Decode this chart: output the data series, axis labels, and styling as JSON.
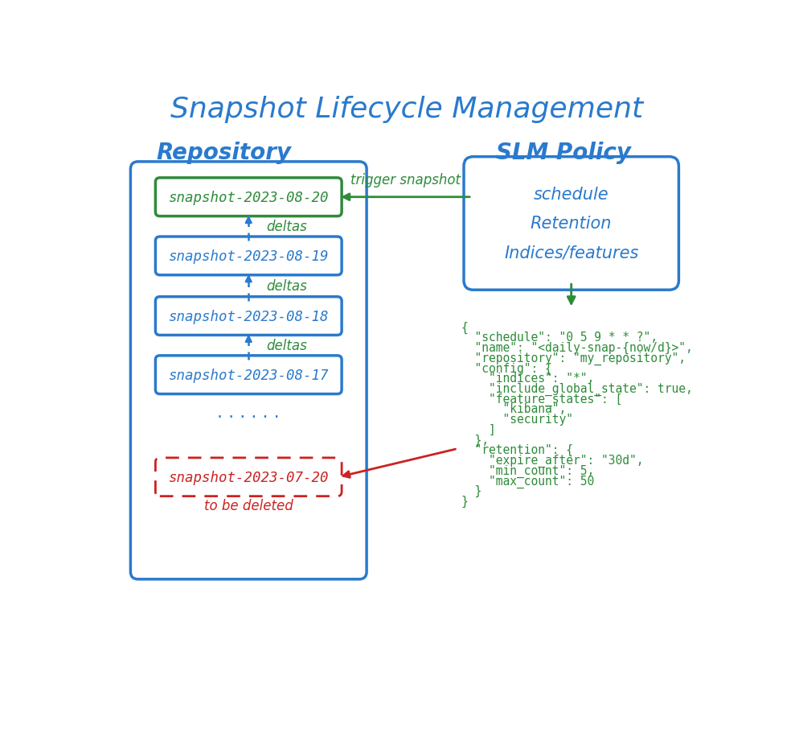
{
  "title": "Snapshot Lifecycle Management",
  "title_color": "#2a7acd",
  "title_fontsize": 26,
  "bg_color": "#ffffff",
  "repo_label": "Repository",
  "slm_label": "SLM Policy",
  "label_color": "#2a7acd",
  "label_fontsize": 20,
  "snapshot_boxes_blue": [
    "snapshot-2023-08-20",
    "snapshot-2023-08-19",
    "snapshot-2023-08-18",
    "snapshot-2023-08-17"
  ],
  "snapshot_box_red": "snapshot-2023-07-20",
  "box_blue_color": "#2a7acd",
  "box_green_color": "#2e8b3a",
  "box_red_color": "#cc2222",
  "snapshot_fontsize": 12.5,
  "slm_policy_text": "schedule\nRetention\nIndices/features",
  "slm_policy_fontsize": 15,
  "slm_policy_color": "#2a7acd",
  "json_lines": [
    "{",
    "  \"schedule\": \"0 5 9 * * ?\",",
    "  \"name\": \"<daily-snap-{now/d}>\",",
    "  \"repository\": \"my_repository\",",
    "  \"config\": {",
    "    \"indices\": \"*\",",
    "    \"include_global_state\": true,",
    "    \"feature_states\": [",
    "      \"kibana\",",
    "      \"security\"",
    "    ]",
    "  },",
    "  \"retention\": {",
    "    \"expire_after\": \"30d\",",
    "    \"min_count\": 5,",
    "    \"max_count\": 50",
    "  }",
    "}"
  ],
  "json_fontsize": 10.5,
  "json_color": "#2e8b3a",
  "green_arrow_color": "#2e8b3a",
  "red_arrow_color": "#cc2222",
  "deltas_color": "#2e8b3a",
  "deltas_fontsize": 12,
  "to_be_deleted_color": "#cc2222",
  "trigger_text": "trigger snapshot",
  "trigger_color": "#2e8b3a",
  "trigger_fontsize": 12
}
